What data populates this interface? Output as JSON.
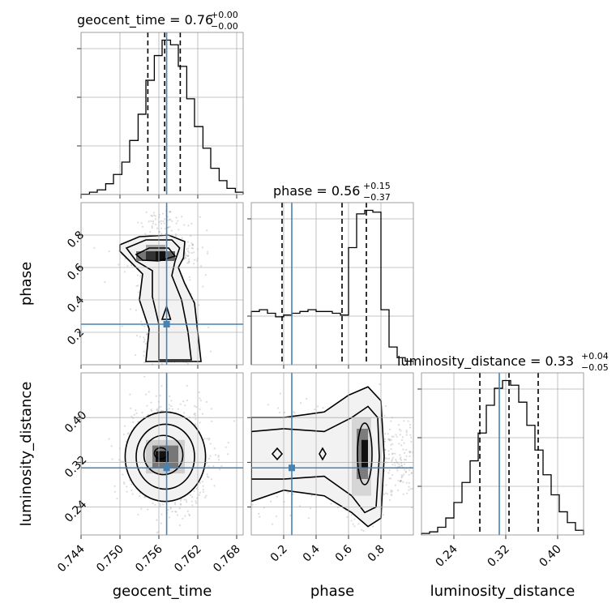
{
  "chart_data": {
    "type": "corner",
    "parameters": [
      "geocent_time",
      "phase",
      "luminosity_distance"
    ],
    "truths": {
      "geocent_time": 0.7572,
      "phase": 0.25,
      "luminosity_distance": 0.31
    },
    "panels": {
      "geocent_time": {
        "title": "geocent_time = 0.76",
        "title_sup": "+0.00",
        "title_sub": "−0.00",
        "xlim": [
          0.744,
          0.769
        ],
        "hist_bins": [
          0.744,
          0.7453,
          0.7465,
          0.7478,
          0.749,
          0.7503,
          0.7515,
          0.7528,
          0.754,
          0.7553,
          0.7565,
          0.7578,
          0.759,
          0.7603,
          0.7615,
          0.7628,
          0.764,
          0.7653,
          0.7665,
          0.7678,
          0.769
        ],
        "hist_counts": [
          0.2,
          1.5,
          3,
          7,
          13,
          21,
          35,
          52,
          74,
          90,
          100,
          97,
          83,
          62,
          44,
          30,
          17,
          9,
          4,
          1.5
        ],
        "quantiles": [
          0.7543,
          0.7569,
          0.7593
        ]
      },
      "phase": {
        "title": "phase = 0.56",
        "title_sup": "+0.15",
        "title_sub": "−0.37",
        "xlim": [
          0.0,
          1.0
        ],
        "hist_bins": [
          0.0,
          0.05,
          0.1,
          0.15,
          0.2,
          0.25,
          0.3,
          0.35,
          0.4,
          0.45,
          0.5,
          0.55,
          0.6,
          0.65,
          0.7,
          0.75,
          0.8,
          0.85,
          0.9,
          0.95,
          1.0
        ],
        "hist_counts": [
          30,
          31,
          29,
          27,
          28,
          29,
          30,
          31,
          30,
          30,
          29,
          28,
          66,
          85,
          87,
          86,
          31,
          10,
          4,
          2
        ],
        "quantiles": [
          0.19,
          0.56,
          0.71
        ]
      },
      "luminosity_distance": {
        "title": "luminosity_distance = 0.33",
        "title_sup": "+0.04",
        "title_sub": "−0.05",
        "xlim": [
          0.19,
          0.44
        ],
        "hist_bins": [
          0.19,
          0.2025,
          0.215,
          0.2275,
          0.24,
          0.2525,
          0.265,
          0.2775,
          0.29,
          0.3025,
          0.315,
          0.3275,
          0.34,
          0.3525,
          0.365,
          0.3775,
          0.39,
          0.4025,
          0.415,
          0.4275,
          0.44
        ],
        "hist_counts": [
          1,
          2,
          5,
          11,
          21,
          34,
          48,
          66,
          84,
          95,
          100,
          97,
          86,
          71,
          55,
          39,
          26,
          15,
          8,
          3
        ],
        "quantiles": [
          0.28,
          0.325,
          0.37
        ]
      }
    },
    "axes": {
      "geocent_time": {
        "label": "geocent_time",
        "ticks": [
          0.744,
          0.75,
          0.756,
          0.762,
          0.768
        ],
        "tick_labels": [
          "0.744",
          "0.750",
          "0.756",
          "0.762",
          "0.768"
        ]
      },
      "phase": {
        "label": "phase",
        "ylim": [
          0.0,
          1.0
        ],
        "ticks": [
          0.2,
          0.4,
          0.6,
          0.8
        ],
        "tick_labels": [
          "0.2",
          "0.4",
          "0.6",
          "0.8"
        ]
      },
      "luminosity_distance": {
        "label": "luminosity_distance",
        "ylim": [
          0.19,
          0.48
        ],
        "ticks": [
          0.24,
          0.32,
          0.4
        ],
        "tick_labels": [
          "0.24",
          "0.32",
          "0.40"
        ]
      }
    },
    "colors": {
      "truth": "#4682b4",
      "hist": "#000000",
      "points": "#9a9a9a"
    },
    "grid": true
  }
}
